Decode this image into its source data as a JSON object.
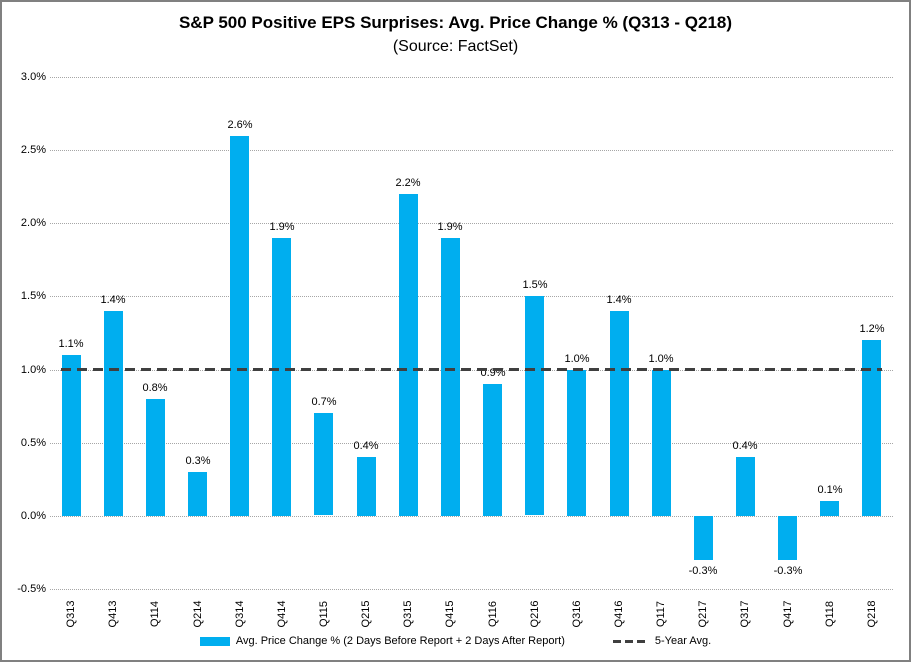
{
  "chart_data": {
    "type": "bar",
    "title": "S&P 500 Positive EPS Surprises: Avg. Price Change % (Q313 - Q218)",
    "subtitle": "(Source: FactSet)",
    "categories": [
      "Q313",
      "Q413",
      "Q114",
      "Q214",
      "Q314",
      "Q414",
      "Q115",
      "Q215",
      "Q315",
      "Q415",
      "Q116",
      "Q216",
      "Q316",
      "Q416",
      "Q117",
      "Q217",
      "Q317",
      "Q417",
      "Q118",
      "Q218"
    ],
    "series": [
      {
        "name": "Avg. Price Change % (2 Days Before Report + 2 Days After Report)",
        "type": "bar",
        "color": "#00AEEF",
        "values": [
          1.1,
          1.4,
          0.8,
          0.3,
          2.6,
          1.9,
          0.7,
          0.4,
          2.2,
          1.9,
          0.9,
          1.5,
          1.0,
          1.4,
          1.0,
          -0.3,
          0.4,
          -0.3,
          0.1,
          1.2
        ]
      },
      {
        "name": "5-Year Avg.",
        "type": "dashed-line",
        "color": "#3f3f3f",
        "value": 1.0
      }
    ],
    "data_labels": [
      "1.1%",
      "1.4%",
      "0.8%",
      "0.3%",
      "2.6%",
      "1.9%",
      "0.7%",
      "0.4%",
      "2.2%",
      "1.9%",
      "0.9%",
      "1.5%",
      "1.0%",
      "1.4%",
      "1.0%",
      "-0.3%",
      "0.4%",
      "-0.3%",
      "0.1%",
      "1.2%"
    ],
    "xlabel": "",
    "ylabel": "",
    "y_axis": {
      "min": -0.5,
      "max": 3.0,
      "step": 0.5,
      "tick_labels": [
        "3.0%",
        "2.5%",
        "2.0%",
        "1.5%",
        "1.0%",
        "0.5%",
        "0.0%",
        "-0.5%"
      ]
    },
    "grid": true,
    "gridline_color": "#a6a6a6",
    "legend": {
      "position": "bottom",
      "entries": [
        {
          "label": "Avg. Price Change % (2 Days Before Report + 2 Days After Report)",
          "swatch": "bar",
          "color": "#00AEEF"
        },
        {
          "label": "5-Year Avg.",
          "swatch": "dashed-line",
          "color": "#3f3f3f"
        }
      ]
    }
  }
}
